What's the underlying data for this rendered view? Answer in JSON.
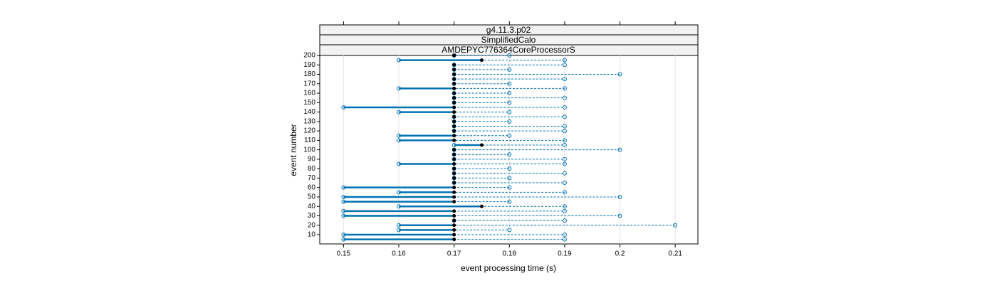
{
  "chart_data": {
    "type": "dotplot",
    "strips": [
      "g4.11.3.p02",
      "SimplifiedCalo",
      "AMDEPYC776364CoreProcessorS"
    ],
    "x_label": "event processing time (s)",
    "y_label": "event number",
    "xlim": [
      0.1457,
      0.2141
    ],
    "xticks": [
      0.15,
      0.16,
      0.17,
      0.18,
      0.19,
      0.2,
      0.21
    ],
    "ylim": [
      0.2,
      200
    ],
    "yticks": [
      10,
      20,
      30,
      40,
      50,
      60,
      70,
      80,
      90,
      100,
      110,
      120,
      130,
      140,
      150,
      160,
      170,
      180,
      190,
      200
    ],
    "color": "#0072b2",
    "median_color": "#000000",
    "grid": true,
    "events": [
      5,
      10,
      15,
      20,
      25,
      30,
      35,
      40,
      45,
      50,
      55,
      60,
      65,
      70,
      75,
      80,
      85,
      90,
      95,
      100,
      105,
      110,
      115,
      120,
      125,
      130,
      135,
      140,
      145,
      150,
      155,
      160,
      165,
      170,
      175,
      180,
      185,
      190,
      195,
      200
    ],
    "min": [
      0.15,
      0.15,
      0.16,
      0.16,
      0.17,
      0.15,
      0.15,
      0.16,
      0.15,
      0.15,
      0.16,
      0.15,
      0.17,
      0.17,
      0.17,
      0.17,
      0.16,
      0.17,
      0.17,
      0.17,
      0.17,
      0.16,
      0.16,
      0.17,
      0.17,
      0.17,
      0.17,
      0.16,
      0.15,
      0.17,
      0.17,
      0.17,
      0.16,
      0.17,
      0.17,
      0.17,
      0.17,
      0.17,
      0.16,
      0.17
    ],
    "median": [
      0.17,
      0.17,
      0.17,
      0.17,
      0.17,
      0.17,
      0.17,
      0.175,
      0.17,
      0.17,
      0.17,
      0.17,
      0.17,
      0.17,
      0.17,
      0.17,
      0.17,
      0.17,
      0.17,
      0.17,
      0.175,
      0.17,
      0.17,
      0.17,
      0.17,
      0.17,
      0.17,
      0.17,
      0.17,
      0.17,
      0.17,
      0.17,
      0.17,
      0.17,
      0.17,
      0.17,
      0.17,
      0.17,
      0.175,
      0.17
    ],
    "max": [
      0.19,
      0.19,
      0.18,
      0.21,
      0.19,
      0.2,
      0.19,
      0.19,
      0.18,
      0.2,
      0.19,
      0.18,
      0.19,
      0.18,
      0.19,
      0.18,
      0.19,
      0.19,
      0.18,
      0.2,
      0.19,
      0.19,
      0.18,
      0.19,
      0.19,
      0.18,
      0.19,
      0.18,
      0.19,
      0.18,
      0.19,
      0.18,
      0.19,
      0.18,
      0.19,
      0.2,
      0.18,
      0.19,
      0.19,
      0.18
    ]
  }
}
